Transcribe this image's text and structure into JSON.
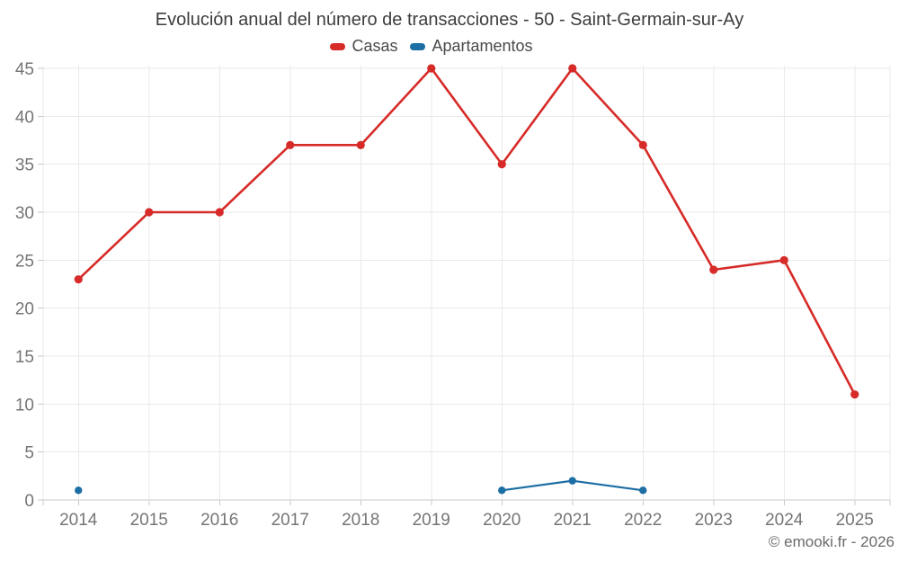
{
  "title": "Evolución anual del número de transacciones - 50 - Saint-Germain-sur-Ay",
  "footer": "© emooki.fr - 2026",
  "colors": {
    "casas": "#d62b28",
    "apartamentos": "#1c6ea4",
    "grid": "#e9e9e9",
    "axis_line": "#c9c9c9",
    "axis_label": "#757575",
    "title_text": "#3d3d3d",
    "legend_text": "#4a4a4a",
    "footer_text": "#6a6a6a"
  },
  "chart_data": {
    "type": "line",
    "title": "Evolución anual del número de transacciones - 50 - Saint-Germain-sur-Ay",
    "categories": [
      "2014",
      "2015",
      "2016",
      "2017",
      "2018",
      "2019",
      "2020",
      "2021",
      "2022",
      "2023",
      "2024",
      "2025"
    ],
    "series": [
      {
        "name": "Casas",
        "color": "#d62b28",
        "values": [
          23,
          30,
          30,
          37,
          37,
          45,
          35,
          45,
          37,
          24,
          25,
          11
        ]
      },
      {
        "name": "Apartamentos",
        "color": "#1c6ea4",
        "values": [
          1,
          null,
          null,
          null,
          null,
          null,
          1,
          2,
          1,
          null,
          null,
          null
        ]
      }
    ],
    "xlabel": "",
    "ylabel": "",
    "ylim": [
      0,
      45
    ],
    "ytick_step": 5,
    "yticks": [
      0,
      5,
      10,
      15,
      20,
      25,
      30,
      35,
      40,
      45
    ],
    "grid": true,
    "legend_position": "top"
  }
}
